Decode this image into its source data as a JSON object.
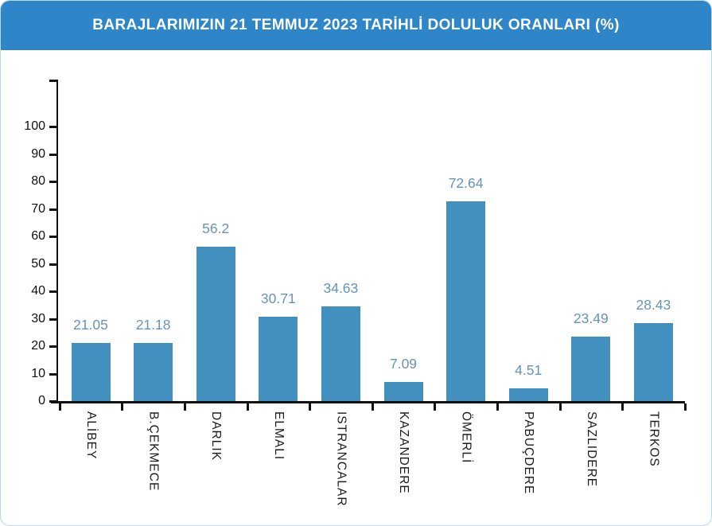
{
  "header": {
    "title": "BARAJLARIMIZIN 21 TEMMUZ 2023 TARİHLİ DOLULUK ORANLARI (%)",
    "background_color": "#2e86c9",
    "text_color": "#ffffff"
  },
  "chart_data": {
    "type": "bar",
    "title": "BARAJLARIMIZIN 21 TEMMUZ 2023 TARİHLİ DOLULUK ORANLARI (%)",
    "categories": [
      "ALİBEY",
      "B.ÇEKMECE",
      "DARLIK",
      "ELMALI",
      "ISTRANCALAR",
      "KAZANDERE",
      "ÖMERLİ",
      "PABUÇDERE",
      "SAZLIDERE",
      "TERKOS"
    ],
    "values": [
      21.05,
      21.18,
      56.2,
      30.71,
      34.63,
      7.09,
      72.64,
      4.51,
      23.49,
      28.43
    ],
    "value_labels": [
      "21.05",
      "21.18",
      "56.2",
      "30.71",
      "34.63",
      "7.09",
      "72.64",
      "4.51",
      "23.49",
      "28.43"
    ],
    "xlabel": "",
    "ylabel": "",
    "ylim": [
      0,
      100
    ],
    "yticks": [
      0,
      10,
      20,
      30,
      40,
      50,
      60,
      70,
      80,
      90,
      100
    ],
    "grid": false,
    "legend_position": "none",
    "bar_color": "#4190c0",
    "value_label_color": "#6594b8",
    "axis_color": "#111111"
  }
}
